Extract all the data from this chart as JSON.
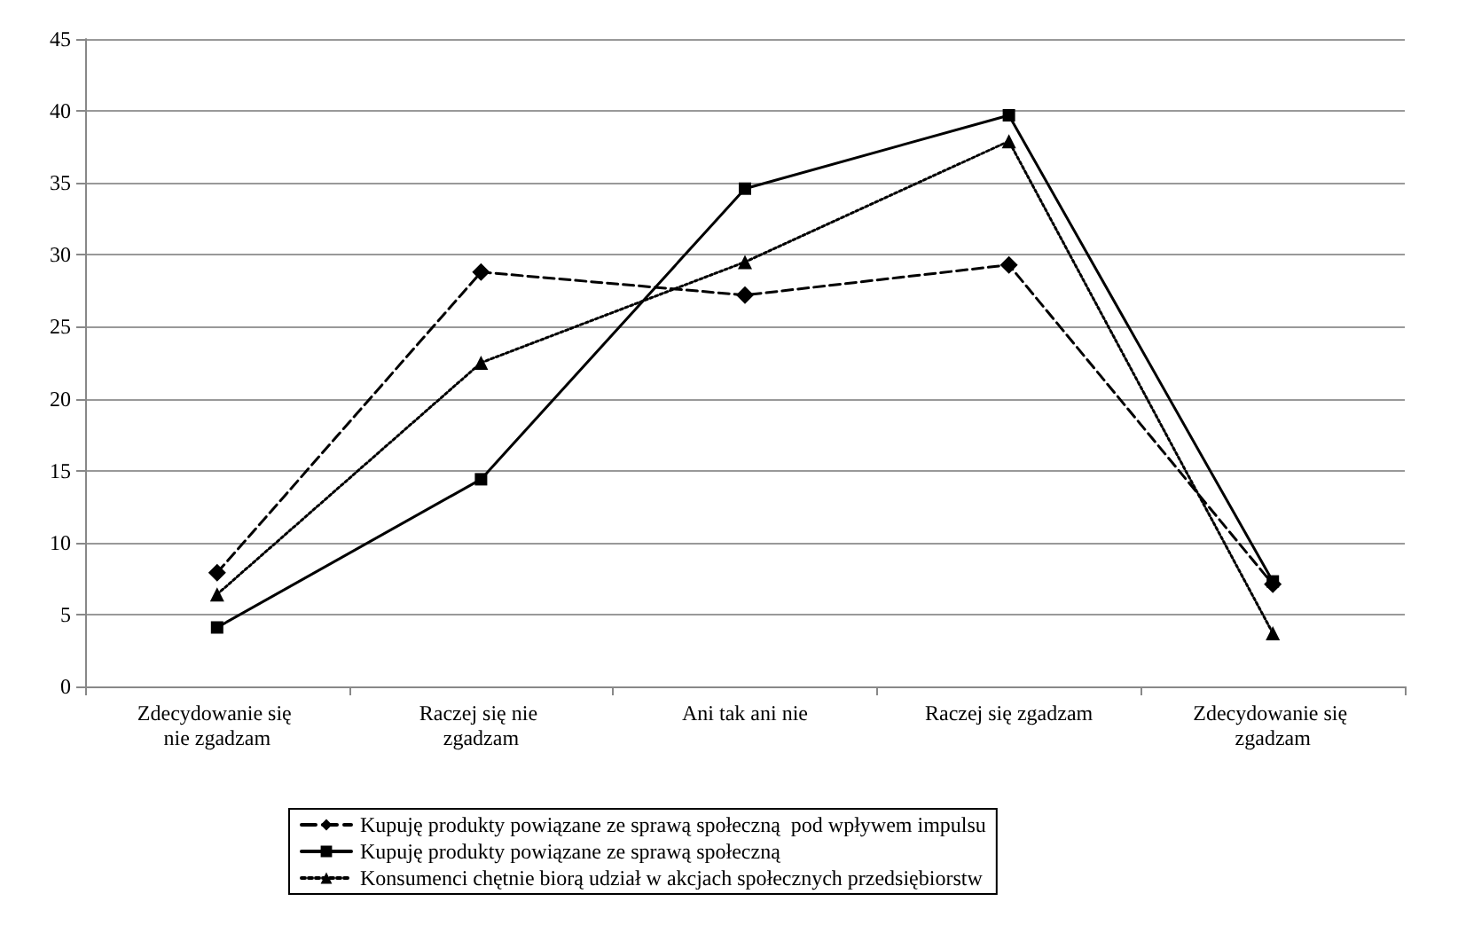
{
  "chart_data": {
    "type": "line",
    "categories": [
      "Zdecydowanie się nie zgadzam",
      "Raczej się nie zgadzam",
      "Ani tak ani nie",
      "Raczej się zgadzam",
      "Zdecydowanie się zgadzam"
    ],
    "series": [
      {
        "name": "Kupuję produkty powiązane ze sprawą społeczną  pod wpływem impulsu",
        "color": "#000000",
        "values": [
          7.9,
          28.8,
          27.2,
          29.3,
          7.1
        ],
        "line_style": "dashed",
        "marker": "diamond"
      },
      {
        "name": "Kupuję produkty powiązane ze sprawą społeczną",
        "color": "#000000",
        "values": [
          4.1,
          14.4,
          34.6,
          39.7,
          7.3
        ],
        "line_style": "solid",
        "marker": "square"
      },
      {
        "name": "Konsumenci chętnie biorą udział w akcjach społecznych przedsiębiorstw",
        "color": "#000000",
        "values": [
          6.4,
          22.5,
          29.5,
          37.9,
          3.7
        ],
        "line_style": "dotted",
        "marker": "triangle"
      }
    ],
    "ylim": [
      0,
      45
    ],
    "yticks": [
      0,
      5,
      10,
      15,
      20,
      25,
      30,
      35,
      40,
      45
    ],
    "grid": "y",
    "legend": "bottom"
  }
}
